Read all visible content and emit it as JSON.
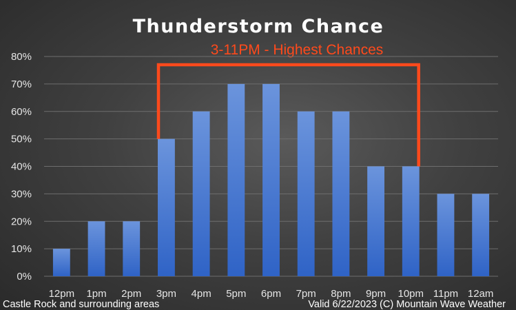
{
  "chart_data": {
    "type": "bar",
    "title": "Thunderstorm Chance",
    "annotation": "3-11PM - Highest Chances",
    "categories": [
      "12pm",
      "1pm",
      "2pm",
      "3pm",
      "4pm",
      "5pm",
      "6pm",
      "7pm",
      "8pm",
      "9pm",
      "10pm",
      "11pm",
      "12am"
    ],
    "values": [
      10,
      20,
      20,
      50,
      60,
      70,
      70,
      60,
      60,
      40,
      40,
      30,
      30
    ],
    "y_ticks": [
      "0%",
      "10%",
      "20%",
      "30%",
      "40%",
      "50%",
      "60%",
      "70%",
      "80%"
    ],
    "ylim": [
      0,
      80
    ],
    "grid": true,
    "highlight_range": [
      "3pm",
      "10pm"
    ],
    "colors": {
      "bar_top": "#6b94dc",
      "bar_bottom": "#2f63c6",
      "highlight": "#ff4a1c"
    }
  },
  "footer": {
    "left": "Castle Rock and surrounding areas",
    "right": "Valid 6/22/2023 (C) Mountain Wave Weather"
  }
}
